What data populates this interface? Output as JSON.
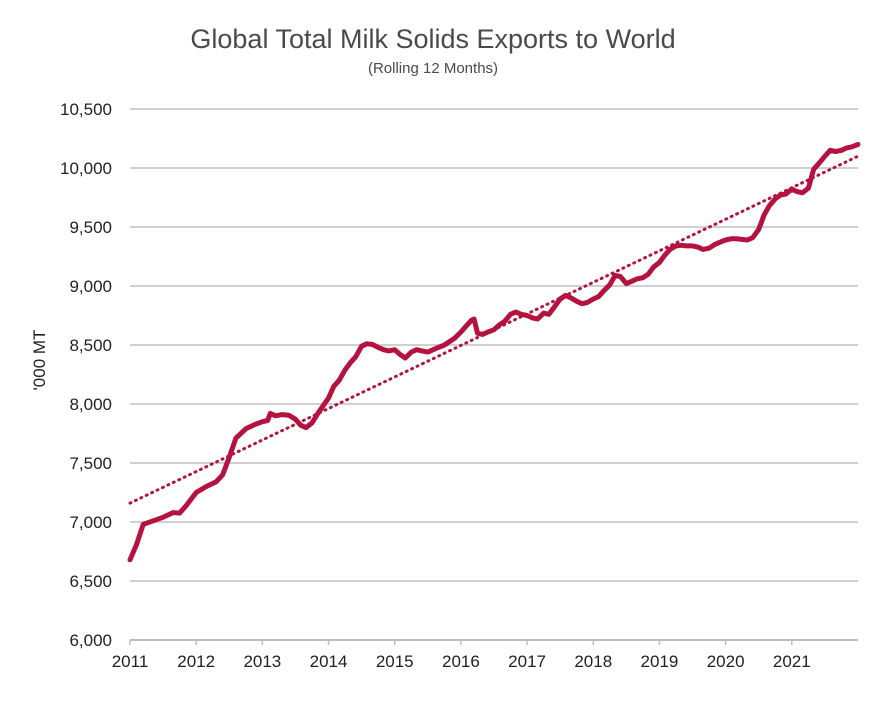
{
  "chart_data": {
    "type": "line",
    "title": "Global Total Milk Solids Exports to World",
    "subtitle": "(Rolling 12 Months)",
    "xlabel": "",
    "ylabel": "'000 MT",
    "xlim": [
      2011,
      2022
    ],
    "ylim": [
      6000,
      10500
    ],
    "x_ticks": [
      "2011",
      "2012",
      "2013",
      "2014",
      "2015",
      "2016",
      "2017",
      "2018",
      "2019",
      "2020",
      "2021"
    ],
    "y_ticks": [
      {
        "value": 6000,
        "label": "6,000"
      },
      {
        "value": 6500,
        "label": "6,500"
      },
      {
        "value": 7000,
        "label": "7,000"
      },
      {
        "value": 7500,
        "label": "7,500"
      },
      {
        "value": 8000,
        "label": "8,000"
      },
      {
        "value": 8500,
        "label": "8,500"
      },
      {
        "value": 9000,
        "label": "9,000"
      },
      {
        "value": 9500,
        "label": "9,500"
      },
      {
        "value": 10000,
        "label": "10,000"
      },
      {
        "value": 10500,
        "label": "10,500"
      }
    ],
    "grid": true,
    "series": [
      {
        "name": "Global Total Milk Solids Exports",
        "color": "#b5123f",
        "style": "solid",
        "points": [
          [
            2011.0,
            6680
          ],
          [
            2011.1,
            6810
          ],
          [
            2011.2,
            6980
          ],
          [
            2011.35,
            7010
          ],
          [
            2011.5,
            7040
          ],
          [
            2011.65,
            7080
          ],
          [
            2011.75,
            7075
          ],
          [
            2011.85,
            7140
          ],
          [
            2012.0,
            7250
          ],
          [
            2012.15,
            7300
          ],
          [
            2012.3,
            7340
          ],
          [
            2012.4,
            7400
          ],
          [
            2012.5,
            7550
          ],
          [
            2012.6,
            7710
          ],
          [
            2012.75,
            7790
          ],
          [
            2012.9,
            7830
          ],
          [
            2013.0,
            7850
          ],
          [
            2013.08,
            7860
          ],
          [
            2013.12,
            7920
          ],
          [
            2013.2,
            7900
          ],
          [
            2013.3,
            7910
          ],
          [
            2013.4,
            7905
          ],
          [
            2013.5,
            7870
          ],
          [
            2013.58,
            7820
          ],
          [
            2013.66,
            7800
          ],
          [
            2013.75,
            7840
          ],
          [
            2013.85,
            7930
          ],
          [
            2014.0,
            8050
          ],
          [
            2014.08,
            8150
          ],
          [
            2014.16,
            8200
          ],
          [
            2014.25,
            8290
          ],
          [
            2014.33,
            8350
          ],
          [
            2014.41,
            8400
          ],
          [
            2014.5,
            8490
          ],
          [
            2014.58,
            8510
          ],
          [
            2014.66,
            8505
          ],
          [
            2014.75,
            8480
          ],
          [
            2014.83,
            8460
          ],
          [
            2014.91,
            8450
          ],
          [
            2015.0,
            8460
          ],
          [
            2015.08,
            8420
          ],
          [
            2015.16,
            8390
          ],
          [
            2015.25,
            8440
          ],
          [
            2015.33,
            8460
          ],
          [
            2015.41,
            8450
          ],
          [
            2015.5,
            8440
          ],
          [
            2015.58,
            8460
          ],
          [
            2015.66,
            8480
          ],
          [
            2015.75,
            8500
          ],
          [
            2015.83,
            8530
          ],
          [
            2015.91,
            8560
          ],
          [
            2016.0,
            8610
          ],
          [
            2016.08,
            8660
          ],
          [
            2016.16,
            8710
          ],
          [
            2016.2,
            8720
          ],
          [
            2016.25,
            8600
          ],
          [
            2016.33,
            8590
          ],
          [
            2016.41,
            8610
          ],
          [
            2016.5,
            8630
          ],
          [
            2016.58,
            8670
          ],
          [
            2016.66,
            8700
          ],
          [
            2016.75,
            8760
          ],
          [
            2016.83,
            8780
          ],
          [
            2016.91,
            8760
          ],
          [
            2017.0,
            8750
          ],
          [
            2017.08,
            8730
          ],
          [
            2017.16,
            8720
          ],
          [
            2017.25,
            8770
          ],
          [
            2017.33,
            8760
          ],
          [
            2017.41,
            8820
          ],
          [
            2017.5,
            8890
          ],
          [
            2017.58,
            8920
          ],
          [
            2017.66,
            8900
          ],
          [
            2017.75,
            8870
          ],
          [
            2017.83,
            8850
          ],
          [
            2017.91,
            8860
          ],
          [
            2018.0,
            8890
          ],
          [
            2018.08,
            8910
          ],
          [
            2018.16,
            8960
          ],
          [
            2018.25,
            9010
          ],
          [
            2018.33,
            9090
          ],
          [
            2018.41,
            9080
          ],
          [
            2018.5,
            9020
          ],
          [
            2018.58,
            9040
          ],
          [
            2018.66,
            9060
          ],
          [
            2018.75,
            9070
          ],
          [
            2018.83,
            9100
          ],
          [
            2018.91,
            9160
          ],
          [
            2019.0,
            9200
          ],
          [
            2019.08,
            9260
          ],
          [
            2019.16,
            9310
          ],
          [
            2019.25,
            9340
          ],
          [
            2019.33,
            9345
          ],
          [
            2019.41,
            9340
          ],
          [
            2019.5,
            9340
          ],
          [
            2019.58,
            9330
          ],
          [
            2019.66,
            9310
          ],
          [
            2019.75,
            9320
          ],
          [
            2019.83,
            9350
          ],
          [
            2019.91,
            9370
          ],
          [
            2020.0,
            9390
          ],
          [
            2020.08,
            9400
          ],
          [
            2020.16,
            9400
          ],
          [
            2020.25,
            9395
          ],
          [
            2020.33,
            9390
          ],
          [
            2020.41,
            9410
          ],
          [
            2020.5,
            9480
          ],
          [
            2020.58,
            9600
          ],
          [
            2020.66,
            9680
          ],
          [
            2020.75,
            9740
          ],
          [
            2020.83,
            9770
          ],
          [
            2020.91,
            9780
          ],
          [
            2021.0,
            9820
          ],
          [
            2021.08,
            9800
          ],
          [
            2021.16,
            9790
          ],
          [
            2021.25,
            9830
          ],
          [
            2021.33,
            9990
          ],
          [
            2021.41,
            10040
          ],
          [
            2021.5,
            10100
          ],
          [
            2021.58,
            10150
          ],
          [
            2021.66,
            10140
          ],
          [
            2021.75,
            10150
          ],
          [
            2021.83,
            10170
          ],
          [
            2021.91,
            10180
          ],
          [
            2022.0,
            10200
          ]
        ]
      },
      {
        "name": "Linear trend",
        "color": "#b5123f",
        "style": "dotted",
        "points": [
          [
            2011.0,
            7160
          ],
          [
            2022.0,
            10100
          ]
        ]
      }
    ]
  }
}
